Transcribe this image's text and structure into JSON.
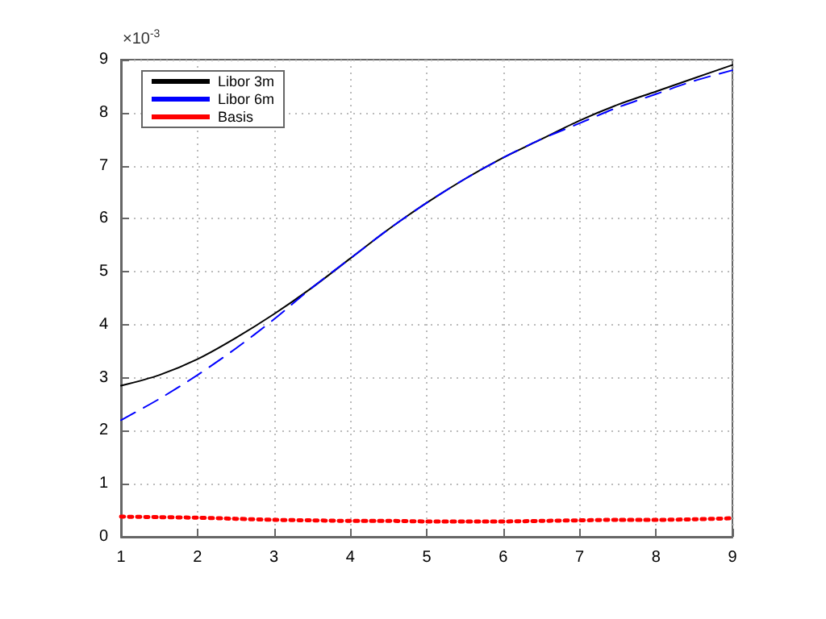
{
  "chart_data": {
    "type": "line",
    "x": [
      1,
      1.5,
      2,
      2.5,
      3,
      3.5,
      4,
      4.5,
      5,
      5.5,
      6,
      6.5,
      7,
      7.5,
      8,
      8.5,
      9
    ],
    "series": [
      {
        "name": "Libor 3m",
        "color": "#000000",
        "line_style": "solid",
        "values": [
          2.85,
          3.05,
          3.35,
          3.75,
          4.2,
          4.7,
          5.25,
          5.8,
          6.3,
          6.75,
          7.15,
          7.5,
          7.85,
          8.15,
          8.4,
          8.65,
          8.9
        ]
      },
      {
        "name": "Libor 6m",
        "color": "#0000ff",
        "line_style": "dashed",
        "values": [
          2.2,
          2.6,
          3.05,
          3.55,
          4.1,
          4.7,
          5.25,
          5.8,
          6.3,
          6.75,
          7.15,
          7.5,
          7.8,
          8.1,
          8.35,
          8.6,
          8.8
        ]
      },
      {
        "name": "Basis",
        "color": "#ff0000",
        "line_style": "dotted",
        "values": [
          0.38,
          0.37,
          0.36,
          0.34,
          0.32,
          0.31,
          0.3,
          0.3,
          0.29,
          0.29,
          0.29,
          0.3,
          0.31,
          0.32,
          0.32,
          0.33,
          0.35
        ]
      }
    ],
    "xlim": [
      1,
      9
    ],
    "xticks": [
      1,
      2,
      3,
      4,
      5,
      6,
      7,
      8,
      9
    ],
    "ylim": [
      0,
      9
    ],
    "yticks": [
      0,
      1,
      2,
      3,
      4,
      5,
      6,
      7,
      8,
      9
    ],
    "annotations": [
      "×10$^{-3}$"
    ],
    "grid": true,
    "legend": "top left",
    "marker": "none"
  }
}
